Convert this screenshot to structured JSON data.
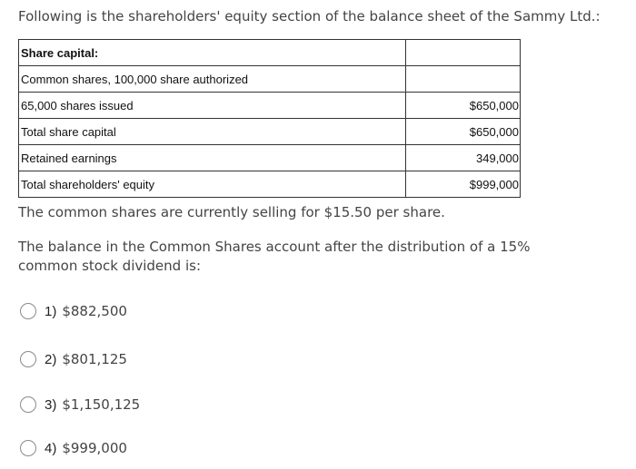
{
  "question": {
    "intro": "Following is the shareholders' equity section of the balance sheet of the Sammy Ltd.:",
    "table": {
      "header": "Share capital:",
      "rows": [
        {
          "label": "Common shares, 100,000 share authorized",
          "amount": ""
        },
        {
          "label": "65,000 shares issued",
          "amount": "$650,000"
        },
        {
          "label": "Total share capital",
          "amount": "$650,000"
        },
        {
          "label": "Retained earnings",
          "amount": "349,000"
        },
        {
          "label": "Total shareholders' equity",
          "amount": "$999,000"
        }
      ]
    },
    "price_text": "The common shares are currently selling for $15.50 per share.",
    "prompt": "The balance in the Common Shares account after the distribution of a 15% common stock dividend is:"
  },
  "options": [
    {
      "num": "1)",
      "value": "$882,500"
    },
    {
      "num": "2)",
      "value": "$801,125"
    },
    {
      "num": "3)",
      "value": "$1,150,125"
    },
    {
      "num": "4)",
      "value": "$999,000"
    }
  ]
}
